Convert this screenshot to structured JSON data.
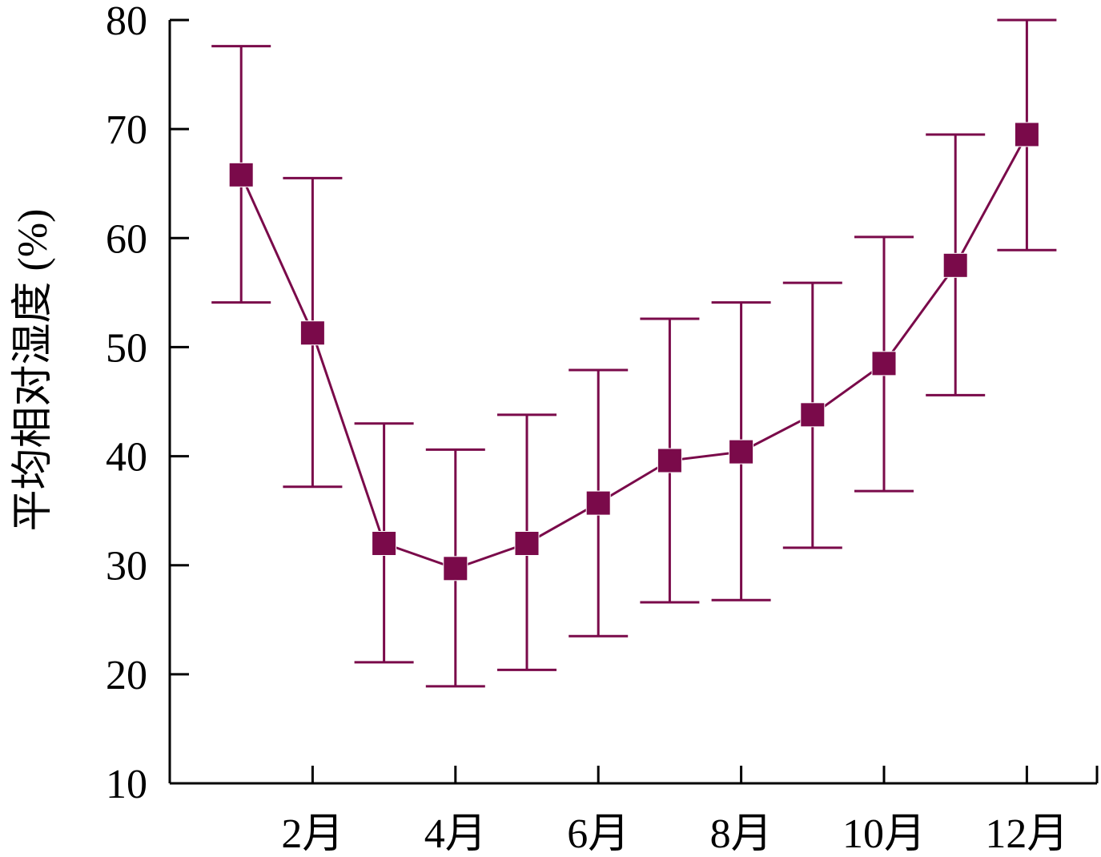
{
  "colors": {
    "series": "#7a0a4a",
    "axis": "#000000"
  },
  "chart_data": {
    "type": "line",
    "xlabel": "",
    "ylabel": "平均相对湿度 (%)",
    "ylim": [
      10,
      80
    ],
    "yticks": [
      10,
      20,
      30,
      40,
      50,
      60,
      70,
      80
    ],
    "ytick_labels": [
      "10",
      "20",
      "30",
      "40",
      "50",
      "60",
      "70",
      "80"
    ],
    "xlim": [
      0,
      13
    ],
    "xticks": [
      2,
      4,
      6,
      8,
      10,
      12
    ],
    "xtick_labels": [
      "2月",
      "4月",
      "6月",
      "8月",
      "10月",
      "12月"
    ],
    "grid": false,
    "marker": "square",
    "series": [
      {
        "x": [
          1,
          2,
          3,
          4,
          5,
          6,
          7,
          8,
          9,
          10,
          11,
          12
        ],
        "values": [
          65.8,
          51.3,
          32.0,
          29.7,
          32.0,
          35.7,
          39.6,
          40.4,
          43.8,
          48.5,
          57.5,
          69.5
        ],
        "error_upper": [
          77.6,
          65.5,
          43.0,
          40.6,
          43.8,
          47.9,
          52.6,
          54.1,
          55.9,
          60.1,
          69.5,
          80.0
        ],
        "error_lower": [
          54.1,
          37.2,
          21.1,
          18.9,
          20.4,
          23.5,
          26.6,
          26.8,
          31.6,
          36.8,
          45.6,
          58.9
        ]
      }
    ]
  }
}
